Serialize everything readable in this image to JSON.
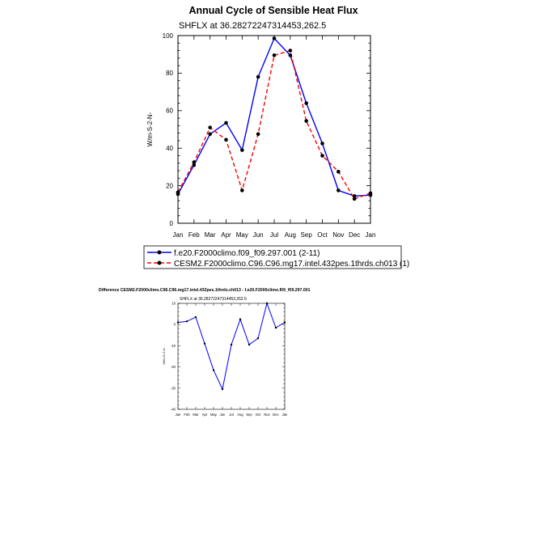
{
  "chart_data": [
    {
      "type": "line",
      "title": "Annual Cycle of Sensible Heat Flux",
      "subtitle": "SHFLX at 36.28272247314453,262.5",
      "ylabel": "W/m-S-2-N-",
      "xlabel": "",
      "categories": [
        "Jan",
        "Feb",
        "Mar",
        "Apr",
        "May",
        "Jun",
        "Jul",
        "Aug",
        "Sep",
        "Oct",
        "Nov",
        "Dec",
        "Jan"
      ],
      "ylim": [
        0,
        100
      ],
      "yticks": [
        0,
        20,
        40,
        60,
        80,
        100
      ],
      "grid": false,
      "legend_position": "bottom",
      "series": [
        {
          "name": "f.e20.F2000climo.f09_f09.297.001 (2-11)",
          "color": "#0000ff",
          "dash": "solid",
          "values": [
            15.5,
            31,
            47.5,
            53.5,
            39,
            78,
            98.5,
            89.5,
            64,
            42.5,
            17.5,
            14.5,
            15
          ]
        },
        {
          "name": "CESM2.F2000climo.C96.C96.mg17.intel.432pes.1thrds.ch013 (1)",
          "color": "#ff0000",
          "dash": "dashed",
          "values": [
            16.5,
            32.5,
            51,
            44.5,
            17.5,
            47.5,
            89.5,
            92,
            54.5,
            36,
            27.5,
            13,
            16
          ]
        }
      ]
    },
    {
      "type": "line",
      "title": "Difference CESM2.F2000climo.C96.C96.mg17.intel.432pes.1thrds.ch013 - f.e20.F2000climo.f09_f09.297.001",
      "subtitle": "SHFLX at 36.28272247314453,262.5",
      "ylabel": "W/m-S-2-N-",
      "xlabel": "",
      "categories": [
        "Jan",
        "Feb",
        "Mar",
        "Apr",
        "May",
        "Jun",
        "Jul",
        "Aug",
        "Sep",
        "Oct",
        "Nov",
        "Dec",
        "Jan"
      ],
      "ylim": [
        -40,
        10
      ],
      "yticks": [
        -40,
        -30,
        -20,
        -10,
        0,
        10
      ],
      "grid": false,
      "series": [
        {
          "name": "",
          "color": "#0000ff",
          "dash": "solid",
          "values": [
            1,
            1.5,
            3.5,
            -9,
            -21.5,
            -30.5,
            -9.5,
            2.5,
            -9.5,
            -6.5,
            10,
            -1.5,
            1
          ]
        }
      ]
    }
  ]
}
